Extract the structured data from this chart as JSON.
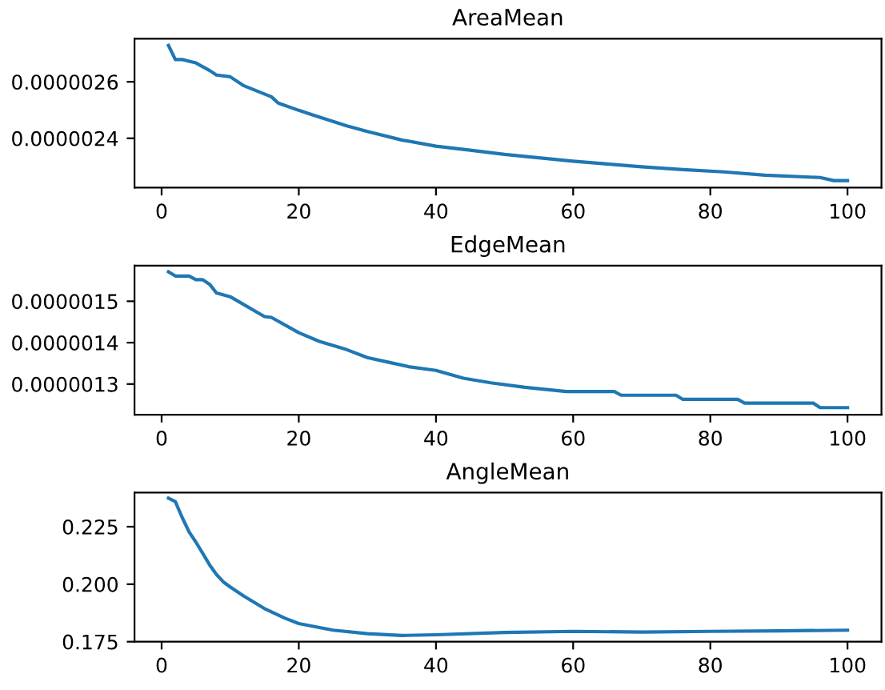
{
  "chart_data": [
    {
      "type": "line",
      "title": "AreaMean",
      "x": [
        1,
        2,
        3,
        4,
        5,
        7,
        8,
        10,
        12,
        16,
        17,
        20,
        22,
        27,
        30,
        35,
        40,
        45,
        50,
        55,
        60,
        65,
        70,
        76,
        82,
        88,
        96,
        98,
        100
      ],
      "series": [
        {
          "color": "#1f77b4",
          "values": [
            2.729e-06,
            2.679e-06,
            2.679e-06,
            2.673e-06,
            2.667e-06,
            2.64e-06,
            2.624e-06,
            2.618e-06,
            2.586e-06,
            2.547e-06,
            2.525e-06,
            2.499e-06,
            2.483e-06,
            2.444e-06,
            2.424e-06,
            2.394e-06,
            2.372e-06,
            2.358e-06,
            2.343e-06,
            2.331e-06,
            2.319e-06,
            2.309e-06,
            2.299e-06,
            2.289e-06,
            2.281e-06,
            2.269e-06,
            2.261e-06,
            2.25e-06,
            2.25e-06
          ]
        }
      ],
      "xlim": [
        -3.95,
        104.95
      ],
      "xticks": [
        0,
        20,
        40,
        60,
        80,
        100
      ],
      "ylim": [
        2.225e-06,
        2.753e-06
      ],
      "yticks": [
        {
          "value": 2.4e-06,
          "label": "0.0000024"
        },
        {
          "value": 2.6e-06,
          "label": "0.0000026"
        }
      ]
    },
    {
      "type": "line",
      "title": "EdgeMean",
      "x": [
        1,
        2,
        4,
        5,
        6,
        7,
        8,
        10,
        15,
        16,
        20,
        23,
        27,
        30,
        33,
        36,
        40,
        44,
        48,
        53,
        59,
        66,
        67,
        75,
        76,
        84,
        85,
        95,
        96,
        100
      ],
      "series": [
        {
          "color": "#1f77b4",
          "values": [
            1.571e-06,
            1.561e-06,
            1.561e-06,
            1.552e-06,
            1.552e-06,
            1.541e-06,
            1.52e-06,
            1.511e-06,
            1.463e-06,
            1.461e-06,
            1.424e-06,
            1.403e-06,
            1.383e-06,
            1.364e-06,
            1.353e-06,
            1.342e-06,
            1.333e-06,
            1.314e-06,
            1.303e-06,
            1.292e-06,
            1.282e-06,
            1.282e-06,
            1.273e-06,
            1.273e-06,
            1.263e-06,
            1.263e-06,
            1.254e-06,
            1.254e-06,
            1.243e-06,
            1.243e-06
          ]
        }
      ],
      "xlim": [
        -3.95,
        104.95
      ],
      "xticks": [
        0,
        20,
        40,
        60,
        80,
        100
      ],
      "ylim": [
        1.226e-06,
        1.586e-06
      ],
      "yticks": [
        {
          "value": 1.3e-06,
          "label": "0.0000013"
        },
        {
          "value": 1.4e-06,
          "label": "0.0000014"
        },
        {
          "value": 1.5e-06,
          "label": "0.0000015"
        }
      ]
    },
    {
      "type": "line",
      "title": "AngleMean",
      "x": [
        1,
        2,
        3,
        4,
        5,
        6,
        7,
        8,
        9,
        10,
        12,
        15,
        18,
        20,
        25,
        30,
        35,
        40,
        50,
        60,
        70,
        80,
        90,
        100
      ],
      "series": [
        {
          "color": "#1f77b4",
          "values": [
            0.2374,
            0.2359,
            0.229,
            0.2228,
            0.2183,
            0.2134,
            0.2084,
            0.2042,
            0.201,
            0.1988,
            0.1948,
            0.1894,
            0.1852,
            0.1829,
            0.18,
            0.1785,
            0.1777,
            0.178,
            0.179,
            0.1795,
            0.1792,
            0.1795,
            0.1797,
            0.18
          ]
        }
      ],
      "xlim": [
        -3.95,
        104.95
      ],
      "xticks": [
        0,
        20,
        40,
        60,
        80,
        100
      ],
      "ylim": [
        0.175,
        0.2398
      ],
      "yticks": [
        {
          "value": 0.175,
          "label": "0.175"
        },
        {
          "value": 0.2,
          "label": "0.200"
        },
        {
          "value": 0.225,
          "label": "0.225"
        }
      ]
    }
  ]
}
